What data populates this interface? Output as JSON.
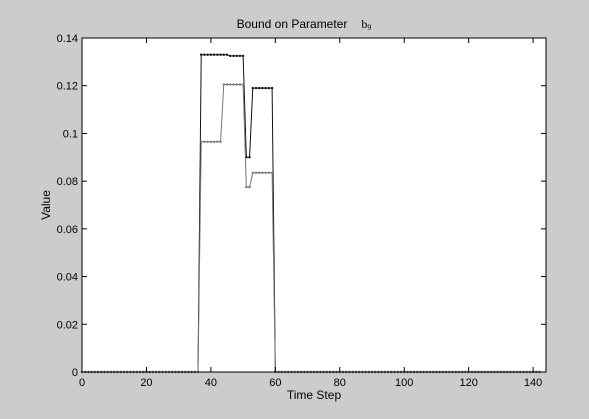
{
  "chart_data": {
    "type": "line",
    "title": "Bound on Parameter",
    "title_param": "b",
    "title_param_sub": "9",
    "xlabel": "Time Step",
    "ylabel": "Value",
    "xlim": [
      0,
      144
    ],
    "ylim": [
      0,
      0.14
    ],
    "xticks": [
      0,
      20,
      40,
      60,
      80,
      100,
      120,
      140
    ],
    "yticks": [
      0,
      0.02,
      0.04,
      0.06,
      0.08,
      0.1,
      0.12,
      0.14
    ],
    "grid": false,
    "colors": {
      "figure_bg": "#cccccc",
      "axes_bg": "#ffffff",
      "series_upper": "#111111",
      "series_lower": "#777777"
    },
    "series": [
      {
        "x": [
          0,
          1,
          2,
          3,
          4,
          5,
          6,
          7,
          8,
          9,
          10,
          11,
          12,
          13,
          14,
          15,
          16,
          17,
          18,
          19,
          20,
          21,
          22,
          23,
          24,
          25,
          26,
          27,
          28,
          29,
          30,
          31,
          32,
          33,
          34,
          35,
          36,
          37,
          38,
          39,
          40,
          41,
          42,
          43,
          44,
          45,
          46,
          47,
          48,
          49,
          50,
          51,
          52,
          53,
          54,
          55,
          56,
          57,
          58,
          59,
          60,
          61,
          62,
          63,
          64,
          65,
          66,
          67,
          68,
          69,
          70,
          71,
          72,
          73,
          74,
          75,
          76,
          77,
          78,
          79,
          80,
          81,
          82,
          83,
          84,
          85,
          86,
          87,
          88,
          89,
          90,
          91,
          92,
          93,
          94,
          95,
          96,
          97,
          98,
          99,
          100,
          101,
          102,
          103,
          104,
          105,
          106,
          107,
          108,
          109,
          110,
          111,
          112,
          113,
          114,
          115,
          116,
          117,
          118,
          119,
          120,
          121,
          122,
          123,
          124,
          125,
          126,
          127,
          128,
          129,
          130,
          131,
          132,
          133,
          134,
          135,
          136,
          137,
          138,
          139,
          140,
          141,
          142
        ],
        "values": [
          0,
          0,
          0,
          0,
          0,
          0,
          0,
          0,
          0,
          0,
          0,
          0,
          0,
          0,
          0,
          0,
          0,
          0,
          0,
          0,
          0,
          0,
          0,
          0,
          0,
          0,
          0,
          0,
          0,
          0,
          0,
          0,
          0,
          0,
          0,
          0,
          0,
          0.133,
          0.133,
          0.133,
          0.133,
          0.133,
          0.133,
          0.133,
          0.133,
          0.133,
          0.1325,
          0.1325,
          0.1325,
          0.1325,
          0.1325,
          0.09,
          0.09,
          0.119,
          0.119,
          0.119,
          0.119,
          0.119,
          0.119,
          0.119,
          0,
          0,
          0,
          0,
          0,
          0,
          0,
          0,
          0,
          0,
          0,
          0,
          0,
          0,
          0,
          0,
          0,
          0,
          0,
          0,
          0,
          0,
          0,
          0,
          0,
          0,
          0,
          0,
          0,
          0,
          0,
          0,
          0,
          0,
          0,
          0,
          0,
          0,
          0,
          0,
          0,
          0,
          0,
          0,
          0,
          0,
          0,
          0,
          0,
          0,
          0,
          0,
          0,
          0,
          0,
          0,
          0,
          0,
          0,
          0,
          0,
          0,
          0,
          0,
          0,
          0,
          0,
          0,
          0,
          0,
          0,
          0,
          0,
          0,
          0,
          0,
          0,
          0,
          0,
          0,
          0,
          0,
          0
        ]
      },
      {
        "x": [
          0,
          1,
          2,
          3,
          4,
          5,
          6,
          7,
          8,
          9,
          10,
          11,
          12,
          13,
          14,
          15,
          16,
          17,
          18,
          19,
          20,
          21,
          22,
          23,
          24,
          25,
          26,
          27,
          28,
          29,
          30,
          31,
          32,
          33,
          34,
          35,
          36,
          37,
          38,
          39,
          40,
          41,
          42,
          43,
          44,
          45,
          46,
          47,
          48,
          49,
          50,
          51,
          52,
          53,
          54,
          55,
          56,
          57,
          58,
          59,
          60,
          61,
          62,
          63,
          64,
          65,
          66,
          67,
          68,
          69,
          70,
          71,
          72,
          73,
          74,
          75,
          76,
          77,
          78,
          79,
          80,
          81,
          82,
          83,
          84,
          85,
          86,
          87,
          88,
          89,
          90,
          91,
          92,
          93,
          94,
          95,
          96,
          97,
          98,
          99,
          100,
          101,
          102,
          103,
          104,
          105,
          106,
          107,
          108,
          109,
          110,
          111,
          112,
          113,
          114,
          115,
          116,
          117,
          118,
          119,
          120,
          121,
          122,
          123,
          124,
          125,
          126,
          127,
          128,
          129,
          130,
          131,
          132,
          133,
          134,
          135,
          136,
          137,
          138,
          139,
          140,
          141,
          142
        ],
        "values": [
          0,
          0,
          0,
          0,
          0,
          0,
          0,
          0,
          0,
          0,
          0,
          0,
          0,
          0,
          0,
          0,
          0,
          0,
          0,
          0,
          0,
          0,
          0,
          0,
          0,
          0,
          0,
          0,
          0,
          0,
          0,
          0,
          0,
          0,
          0,
          0,
          0,
          0.0965,
          0.0965,
          0.0965,
          0.0965,
          0.0965,
          0.0965,
          0.0965,
          0.1205,
          0.1205,
          0.1205,
          0.1205,
          0.1205,
          0.1205,
          0.1205,
          0.0775,
          0.0775,
          0.0835,
          0.0835,
          0.0835,
          0.0835,
          0.0835,
          0.0835,
          0.0835,
          0,
          0,
          0,
          0,
          0,
          0,
          0,
          0,
          0,
          0,
          0,
          0,
          0,
          0,
          0,
          0,
          0,
          0,
          0,
          0,
          0,
          0,
          0,
          0,
          0,
          0,
          0,
          0,
          0,
          0,
          0,
          0,
          0,
          0,
          0,
          0,
          0,
          0,
          0,
          0,
          0,
          0,
          0,
          0,
          0,
          0,
          0,
          0,
          0,
          0,
          0,
          0,
          0,
          0,
          0,
          0,
          0,
          0,
          0,
          0,
          0,
          0,
          0,
          0,
          0,
          0,
          0,
          0,
          0,
          0,
          0,
          0,
          0,
          0,
          0,
          0,
          0,
          0,
          0,
          0,
          0,
          0,
          0
        ]
      }
    ]
  }
}
